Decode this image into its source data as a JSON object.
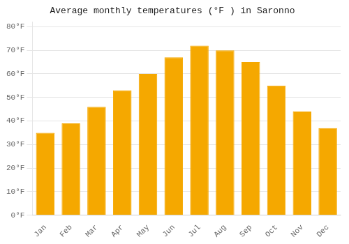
{
  "chart_data": {
    "type": "bar",
    "title": "Average monthly temperatures (°F ) in Saronno",
    "categories": [
      "Jan",
      "Feb",
      "Mar",
      "Apr",
      "May",
      "Jun",
      "Jul",
      "Aug",
      "Sep",
      "Oct",
      "Nov",
      "Dec"
    ],
    "values": [
      35,
      39,
      46,
      53,
      60,
      67,
      72,
      70,
      65,
      55,
      44,
      37
    ],
    "color": "#F5A800",
    "ylim": [
      0,
      82
    ],
    "yticks": [
      {
        "value": 0,
        "label": "0°F"
      },
      {
        "value": 10,
        "label": "10°F"
      },
      {
        "value": 20,
        "label": "20°F"
      },
      {
        "value": 30,
        "label": "30°F"
      },
      {
        "value": 40,
        "label": "40°F"
      },
      {
        "value": 50,
        "label": "50°F"
      },
      {
        "value": 60,
        "label": "60°F"
      },
      {
        "value": 70,
        "label": "70°F"
      },
      {
        "value": 80,
        "label": "80°F"
      }
    ],
    "grid": true
  }
}
